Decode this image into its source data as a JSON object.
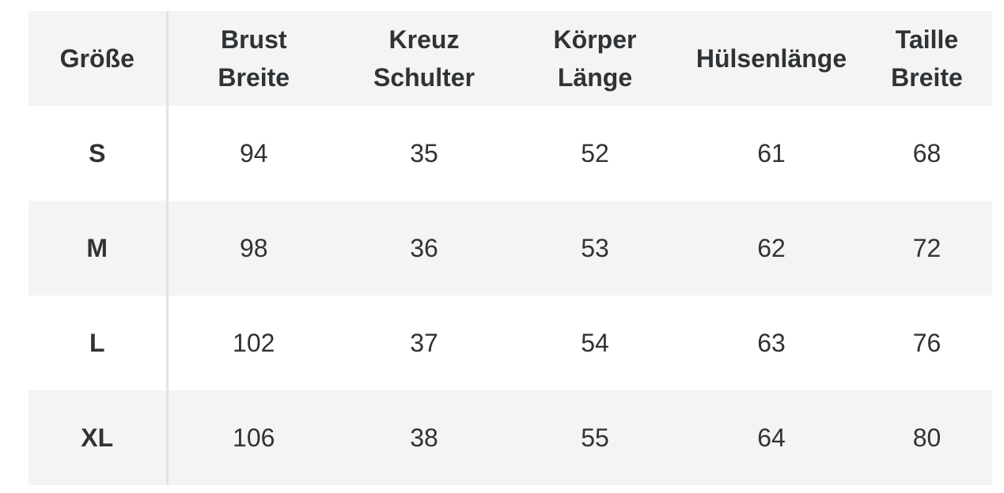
{
  "table": {
    "headers": [
      [
        "Größe"
      ],
      [
        "Brust",
        "Breite"
      ],
      [
        "Kreuz",
        "Schulter"
      ],
      [
        "Körper",
        "Länge"
      ],
      [
        "Hülsenlänge"
      ],
      [
        "Taille",
        "Breite"
      ]
    ],
    "rows": [
      [
        "S",
        "94",
        "35",
        "52",
        "61",
        "68"
      ],
      [
        "M",
        "98",
        "36",
        "53",
        "62",
        "72"
      ],
      [
        "L",
        "102",
        "37",
        "54",
        "63",
        "76"
      ],
      [
        "XL",
        "106",
        "38",
        "55",
        "64",
        "80"
      ]
    ]
  }
}
